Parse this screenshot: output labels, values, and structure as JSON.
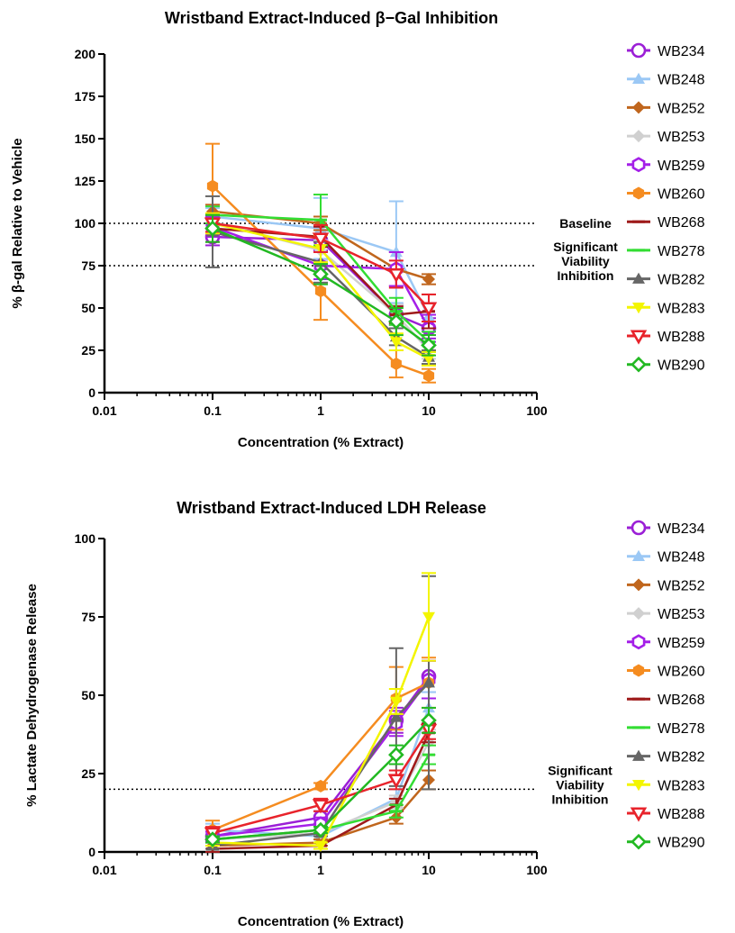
{
  "chart_data": [
    {
      "type": "line",
      "title": "Wristband Extract-Induced β−Gal Inhibition",
      "xlabel": "Concentration (% Extract)",
      "ylabel": "% β-gal Relative to Vehicle",
      "xscale": "log",
      "xlim": [
        0.01,
        100
      ],
      "ylim": [
        0,
        200
      ],
      "x_ticks": [
        "0.01",
        "0.1",
        "1",
        "10",
        "100"
      ],
      "y_ticks": [
        "0",
        "25",
        "50",
        "75",
        "100",
        "125",
        "150",
        "175",
        "200"
      ],
      "x": [
        0.1,
        1,
        5,
        10
      ],
      "legend_position": "right",
      "grid": false,
      "reference_lines": [
        {
          "y": 100,
          "label": [
            "Baseline"
          ]
        },
        {
          "y": 75,
          "label": [
            "Significant",
            "Viability",
            "Inhibition"
          ]
        }
      ],
      "series": [
        {
          "name": "WB234",
          "color": "#9b1fd6",
          "marker": "circle-open",
          "values": [
            92,
            90,
            46,
            38
          ],
          "errors": [
            5,
            6,
            6,
            6
          ]
        },
        {
          "name": "WB248",
          "color": "#9bc8f5",
          "marker": "triangle-up",
          "values": [
            104,
            97,
            83,
            45
          ],
          "errors": [
            5,
            18,
            30,
            8
          ]
        },
        {
          "name": "WB252",
          "color": "#c0661d",
          "marker": "diamond",
          "values": [
            107,
            100,
            73,
            67
          ],
          "errors": [
            4,
            4,
            10,
            3
          ]
        },
        {
          "name": "WB253",
          "color": "#d0d0d0",
          "marker": "diamond",
          "values": [
            101,
            84,
            46,
            25
          ],
          "errors": [
            4,
            6,
            6,
            5
          ]
        },
        {
          "name": "WB259",
          "color": "#a41fe8",
          "marker": "hexagon-open",
          "values": [
            98,
            75,
            73,
            38
          ],
          "errors": [
            6,
            8,
            10,
            8
          ]
        },
        {
          "name": "WB260",
          "color": "#f58c20",
          "marker": "hexagon",
          "values": [
            122,
            60,
            17,
            10
          ],
          "errors": [
            25,
            17,
            8,
            4
          ]
        },
        {
          "name": "WB268",
          "color": "#9e1a1a",
          "marker": "dash",
          "values": [
            97,
            92,
            46,
            48
          ],
          "errors": [
            8,
            6,
            5,
            10
          ]
        },
        {
          "name": "WB278",
          "color": "#33dd33",
          "marker": "dash",
          "values": [
            105,
            102,
            48,
            30
          ],
          "errors": [
            5,
            15,
            8,
            6
          ]
        },
        {
          "name": "WB282",
          "color": "#666666",
          "marker": "triangle-up",
          "values": [
            95,
            77,
            33,
            21
          ],
          "errors": [
            21,
            12,
            5,
            4
          ]
        },
        {
          "name": "WB283",
          "color": "#f3f500",
          "marker": "triangle-down",
          "values": [
            100,
            85,
            30,
            20
          ],
          "errors": [
            6,
            8,
            5,
            4
          ]
        },
        {
          "name": "WB288",
          "color": "#e8232b",
          "marker": "triangle-down-open",
          "values": [
            100,
            91,
            70,
            50
          ],
          "errors": [
            5,
            8,
            8,
            8
          ]
        },
        {
          "name": "WB290",
          "color": "#22b922",
          "marker": "diamond-open",
          "values": [
            97,
            70,
            42,
            28
          ],
          "errors": [
            8,
            6,
            8,
            6
          ]
        }
      ]
    },
    {
      "type": "line",
      "title": "Wristband Extract-Induced LDH Release",
      "xlabel": "Concentration (% Extract)",
      "ylabel": "% Lactate Dehydrogenase Release",
      "xscale": "log",
      "xlim": [
        0.01,
        100
      ],
      "ylim": [
        0,
        100
      ],
      "x_ticks": [
        "0.01",
        "0.1",
        "1",
        "10",
        "100"
      ],
      "y_ticks": [
        "0",
        "25",
        "50",
        "75",
        "100"
      ],
      "x": [
        0.1,
        1,
        5,
        10
      ],
      "legend_position": "right",
      "grid": false,
      "reference_lines": [
        {
          "y": 20,
          "label": [
            "Significant",
            "Viability",
            "Inhibition"
          ]
        }
      ],
      "series": [
        {
          "name": "WB234",
          "color": "#9b1fd6",
          "marker": "circle-open",
          "values": [
            5,
            11,
            42,
            56
          ],
          "errors": [
            1.5,
            2,
            4,
            5
          ]
        },
        {
          "name": "WB248",
          "color": "#9bc8f5",
          "marker": "triangle-up",
          "values": [
            7,
            5,
            17,
            46
          ],
          "errors": [
            2,
            2,
            3,
            5
          ]
        },
        {
          "name": "WB252",
          "color": "#c0661d",
          "marker": "diamond",
          "values": [
            2,
            3,
            11,
            23
          ],
          "errors": [
            1,
            1,
            2,
            3
          ]
        },
        {
          "name": "WB253",
          "color": "#d0d0d0",
          "marker": "diamond",
          "values": [
            4,
            6,
            16,
            35
          ],
          "errors": [
            1,
            1,
            2,
            4
          ]
        },
        {
          "name": "WB259",
          "color": "#a41fe8",
          "marker": "hexagon-open",
          "values": [
            5,
            9,
            41,
            55
          ],
          "errors": [
            1.5,
            2,
            4,
            6
          ]
        },
        {
          "name": "WB260",
          "color": "#f58c20",
          "marker": "hexagon",
          "values": [
            7,
            21,
            49,
            54
          ],
          "errors": [
            3,
            1,
            10,
            8
          ]
        },
        {
          "name": "WB268",
          "color": "#9e1a1a",
          "marker": "dash",
          "values": [
            1,
            2,
            15,
            38
          ],
          "errors": [
            1,
            1,
            2,
            3
          ]
        },
        {
          "name": "WB278",
          "color": "#33dd33",
          "marker": "dash",
          "values": [
            4,
            7,
            13,
            31
          ],
          "errors": [
            1,
            1,
            2,
            3
          ]
        },
        {
          "name": "WB282",
          "color": "#666666",
          "marker": "triangle-up",
          "values": [
            2,
            6,
            43,
            54
          ],
          "errors": [
            1,
            1,
            22,
            34
          ]
        },
        {
          "name": "WB283",
          "color": "#f3f500",
          "marker": "triangle-down",
          "values": [
            3,
            2,
            48,
            75
          ],
          "errors": [
            1,
            1,
            4,
            14
          ]
        },
        {
          "name": "WB288",
          "color": "#e8232b",
          "marker": "triangle-down-open",
          "values": [
            6,
            15,
            23,
            39
          ],
          "errors": [
            2,
            2,
            3,
            3
          ]
        },
        {
          "name": "WB290",
          "color": "#22b922",
          "marker": "diamond-open",
          "values": [
            4,
            7,
            31,
            42
          ],
          "errors": [
            1,
            1,
            3,
            4
          ]
        }
      ]
    }
  ]
}
